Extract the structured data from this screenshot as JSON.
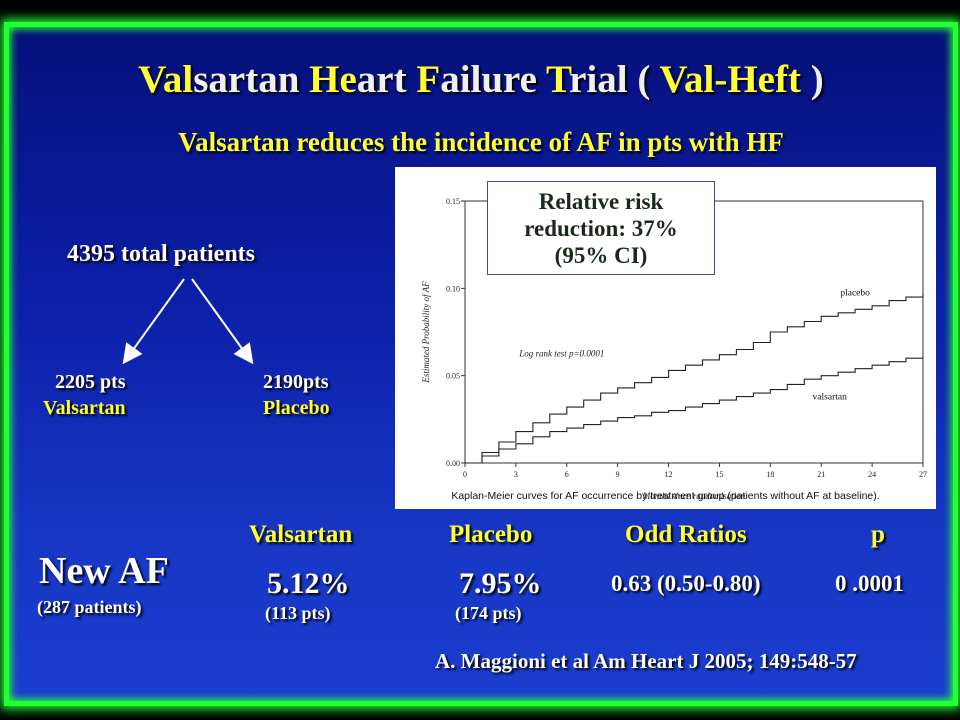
{
  "slide": {
    "title": {
      "p1": "Val",
      "p2": "sartan ",
      "p3": "He",
      "p4": "art ",
      "p5": "F",
      "p6": "ailure ",
      "p7": "T",
      "p8": "rial ( ",
      "p9": "Val-Heft",
      "p10": " )"
    },
    "subtitle": "Valsartan reduces the incidence of AF in pts with HF",
    "total_patients": "4395 total patients",
    "valsartan_pts": "2205 pts",
    "valsartan_label": "Valsartan",
    "placebo_pts": "2190pts",
    "placebo_label": "Placebo",
    "new_af": "New AF",
    "new_af_sub": "(287 patients)",
    "table": {
      "headers": [
        "Valsartan",
        "Placebo",
        "Odd Ratios",
        "p"
      ],
      "valsartan_value": "5.12%",
      "valsartan_pts": "(113 pts)",
      "placebo_value": "7.95%",
      "placebo_pts": "(174 pts)",
      "odds_ratio": "0.63 (0.50-0.80)",
      "p_value": "0 .0001"
    },
    "reference": "A. Maggioni et al Am Heart J 2005; 149:548-57",
    "colors": {
      "background": "#1530b8",
      "border": "#22ff33",
      "highlight": "#ffff33",
      "text": "#ffffff"
    }
  },
  "chart_data": {
    "type": "line",
    "ylabel": "Estimated Probability of AF",
    "xlabel": "Months since randomisation",
    "xlim": [
      0,
      27
    ],
    "ylim": [
      0,
      0.15
    ],
    "x_ticks": [
      0,
      3,
      6,
      9,
      12,
      15,
      18,
      21,
      24,
      27
    ],
    "y_ticks": [
      "0.00",
      "0.05",
      "0.10",
      "0.15"
    ],
    "annotation_rr": [
      "Relative risk",
      "reduction: 37%",
      "(95% CI)"
    ],
    "log_rank": "Log rank test  p=0.0001",
    "caption": "Kaplan-Meier curves for AF occurrence by treatment group (patients without AF at baseline).",
    "series": [
      {
        "name": "placebo",
        "x": [
          0,
          1,
          2,
          3,
          4,
          5,
          6,
          7,
          8,
          9,
          10,
          11,
          12,
          13,
          14,
          15,
          16,
          17,
          18,
          19,
          20,
          21,
          22,
          23,
          24,
          25,
          26,
          27
        ],
        "y": [
          0,
          0.006,
          0.012,
          0.018,
          0.023,
          0.028,
          0.032,
          0.036,
          0.04,
          0.043,
          0.046,
          0.049,
          0.053,
          0.056,
          0.059,
          0.062,
          0.065,
          0.069,
          0.075,
          0.078,
          0.081,
          0.084,
          0.086,
          0.088,
          0.09,
          0.093,
          0.095,
          0.097
        ]
      },
      {
        "name": "valsartan",
        "x": [
          0,
          1,
          2,
          3,
          4,
          5,
          6,
          7,
          8,
          9,
          10,
          11,
          12,
          13,
          14,
          15,
          16,
          17,
          18,
          19,
          20,
          21,
          22,
          23,
          24,
          25,
          26,
          27
        ],
        "y": [
          0,
          0.004,
          0.008,
          0.011,
          0.015,
          0.018,
          0.02,
          0.022,
          0.024,
          0.026,
          0.027,
          0.029,
          0.03,
          0.032,
          0.034,
          0.036,
          0.038,
          0.04,
          0.042,
          0.045,
          0.048,
          0.05,
          0.052,
          0.054,
          0.056,
          0.058,
          0.06,
          0.061
        ]
      }
    ]
  }
}
